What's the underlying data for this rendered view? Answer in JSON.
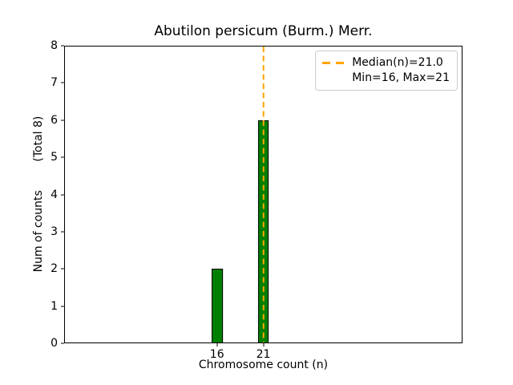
{
  "chart_data": {
    "type": "bar",
    "title": "Abutilon persicum (Burm.) Merr.",
    "xlabel": "Chromosome count (n)",
    "ylabel": "Num of counts        (Total 8)",
    "categories": [
      16,
      21
    ],
    "values": [
      2,
      6
    ],
    "total_counts": 8,
    "median_n": 21.0,
    "min_n": 16,
    "max_n": 21,
    "xlim": [
      -0.5,
      42.5
    ],
    "ylim": [
      0,
      8
    ],
    "yticks": [
      0,
      1,
      2,
      3,
      4,
      5,
      6,
      7,
      8
    ],
    "xticks": [
      16,
      21
    ],
    "bar_width_units": 1.2,
    "grid": false,
    "legend": {
      "position": "upper right",
      "entries": [
        {
          "label": "Median(n)=21.0",
          "marker": "orange-dashed-line"
        },
        {
          "label": "Min=16, Max=21",
          "marker": "none"
        }
      ]
    },
    "colors": {
      "bar_fill": "#008000",
      "bar_edge": "#000000",
      "median_line": "#FFA500",
      "legend_border": "#cccccc",
      "spine": "#000000",
      "background": "#ffffff"
    }
  }
}
